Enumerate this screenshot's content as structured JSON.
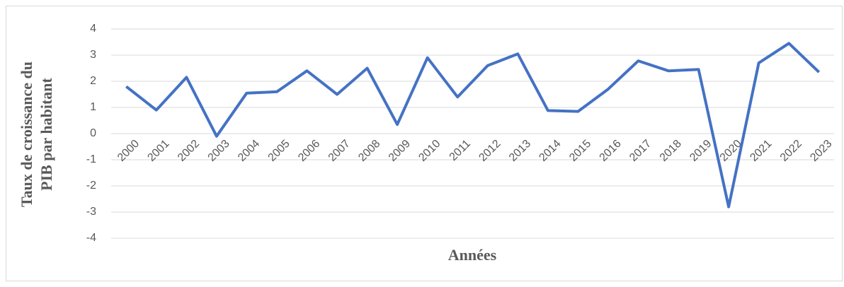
{
  "chart_data": {
    "type": "line",
    "y_label": [
      "Taux de croissance du",
      "PIB par habitant"
    ],
    "x_label": "Années",
    "categories": [
      "2000",
      "2001",
      "2002",
      "2003",
      "2004",
      "2005",
      "2006",
      "2007",
      "2008",
      "2009",
      "2010",
      "2011",
      "2012",
      "2013",
      "2014",
      "2015",
      "2016",
      "2017",
      "2018",
      "2019",
      "2020",
      "2021",
      "2022",
      "2023"
    ],
    "series": [
      {
        "name": null,
        "color": "#4472c4",
        "values": [
          1.8,
          0.9,
          2.15,
          -0.1,
          1.55,
          1.6,
          2.4,
          1.5,
          2.5,
          0.35,
          2.9,
          1.4,
          2.6,
          3.05,
          0.88,
          0.85,
          1.7,
          2.78,
          2.4,
          2.45,
          -2.8,
          2.7,
          3.45,
          2.35
        ]
      }
    ],
    "ylim": [
      -4,
      4
    ],
    "yticks": [
      -4,
      -3,
      -2,
      -1,
      0,
      1,
      2,
      3,
      4
    ],
    "grid": true
  }
}
